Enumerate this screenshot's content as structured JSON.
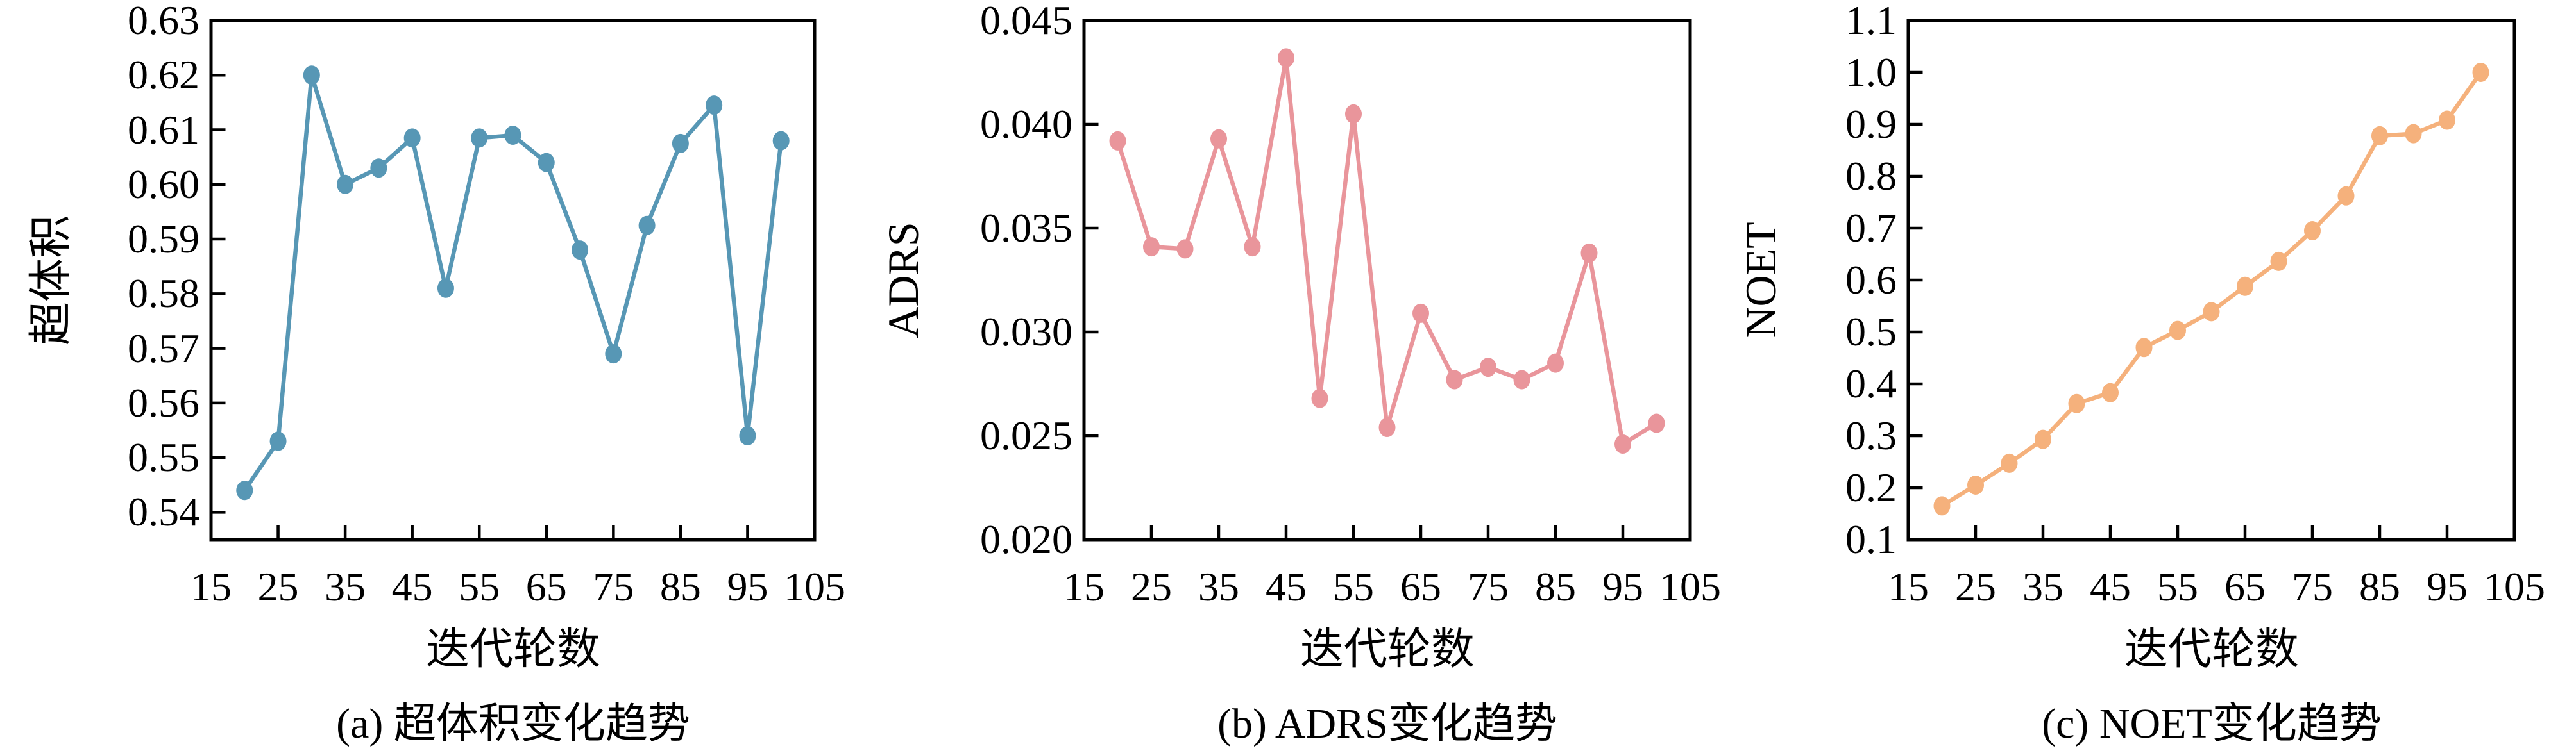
{
  "figure": {
    "x_tick_labels": [
      "15",
      "25",
      "35",
      "45",
      "55",
      "65",
      "75",
      "85",
      "95",
      "105"
    ]
  },
  "chart_data": [
    {
      "type": "line",
      "id": "hypervolume-trend",
      "caption": "(a) 超体积变化趋势",
      "ylabel": "超体积",
      "xlabel": "迭代轮数",
      "color": "#5797B5",
      "grid": false,
      "legend": null,
      "xlim": [
        15,
        105
      ],
      "ylim": [
        0.535,
        0.63
      ],
      "y_tick_labels": [
        "0.54",
        "0.55",
        "0.56",
        "0.57",
        "0.58",
        "0.59",
        "0.60",
        "0.61",
        "0.62",
        "0.63"
      ],
      "x": [
        20,
        25,
        30,
        35,
        40,
        45,
        50,
        55,
        60,
        65,
        70,
        75,
        80,
        85,
        90,
        95,
        100
      ],
      "y": [
        0.544,
        0.553,
        0.62,
        0.6,
        0.603,
        0.6085,
        0.581,
        0.6085,
        0.609,
        0.604,
        0.588,
        0.569,
        0.5925,
        0.6075,
        0.6145,
        0.554,
        0.608
      ]
    },
    {
      "type": "line",
      "id": "adrs-trend",
      "caption": "(b) ADRS变化趋势",
      "ylabel": "ADRS",
      "xlabel": "迭代轮数",
      "color": "#E9959B",
      "grid": false,
      "legend": null,
      "xlim": [
        15,
        105
      ],
      "ylim": [
        0.02,
        0.045
      ],
      "y_tick_labels": [
        "0.020",
        "0.025",
        "0.030",
        "0.035",
        "0.040",
        "0.045"
      ],
      "x": [
        20,
        25,
        30,
        35,
        40,
        45,
        50,
        55,
        60,
        65,
        70,
        75,
        80,
        85,
        90,
        95,
        100
      ],
      "y": [
        0.0392,
        0.0341,
        0.034,
        0.0393,
        0.0341,
        0.0432,
        0.0268,
        0.0405,
        0.0254,
        0.0309,
        0.0277,
        0.0283,
        0.0277,
        0.0285,
        0.0338,
        0.0246,
        0.0256
      ]
    },
    {
      "type": "line",
      "id": "noet-trend",
      "caption": "(c) NOET变化趋势",
      "ylabel": "NOET",
      "xlabel": "迭代轮数",
      "color": "#F5B17C",
      "grid": false,
      "legend": null,
      "xlim": [
        15,
        105
      ],
      "ylim": [
        0.1,
        1.1
      ],
      "y_tick_labels": [
        "0.1",
        "0.2",
        "0.3",
        "0.4",
        "0.5",
        "0.6",
        "0.7",
        "0.8",
        "0.9",
        "1.0",
        "1.1"
      ],
      "x": [
        20,
        25,
        30,
        35,
        40,
        45,
        50,
        55,
        60,
        65,
        70,
        75,
        80,
        85,
        90,
        95,
        100
      ],
      "y": [
        0.165,
        0.205,
        0.247,
        0.293,
        0.362,
        0.383,
        0.47,
        0.503,
        0.539,
        0.588,
        0.636,
        0.695,
        0.762,
        0.878,
        0.882,
        0.908,
        1.0
      ]
    }
  ]
}
